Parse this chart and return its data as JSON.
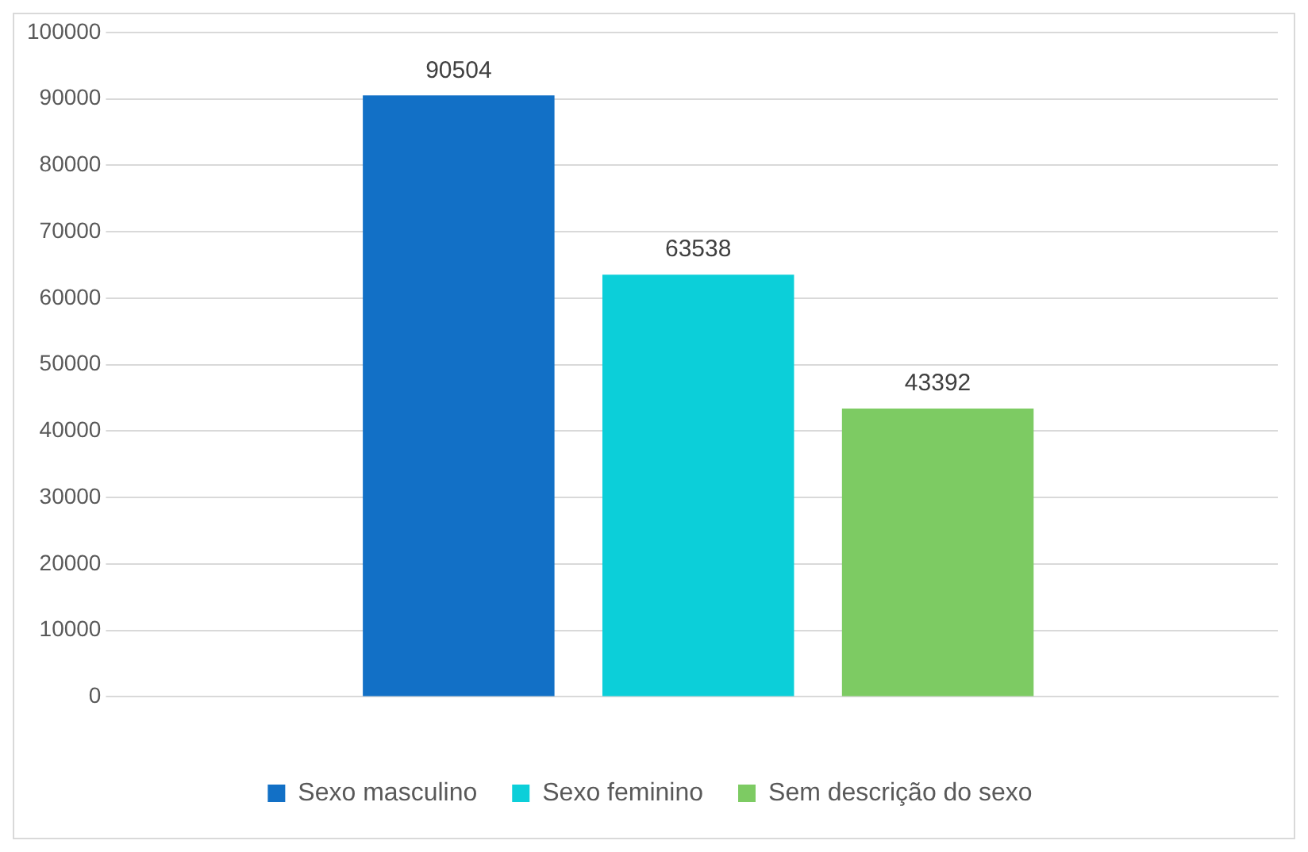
{
  "chart_data": {
    "type": "bar",
    "categories": [
      null
    ],
    "series": [
      {
        "name": "Sexo masculino",
        "color": "#1270c6",
        "values": [
          90504
        ]
      },
      {
        "name": "Sexo feminino",
        "color": "#0ccfd9",
        "values": [
          63538
        ]
      },
      {
        "name": "Sem descrição do sexo",
        "color": "#7dcb63",
        "values": [
          43392
        ]
      }
    ],
    "ylim": [
      0,
      100000
    ],
    "yticks": [
      0,
      10000,
      20000,
      30000,
      40000,
      50000,
      60000,
      70000,
      80000,
      90000,
      100000
    ],
    "grid": "y",
    "legend": "bottom",
    "data_labels": true
  }
}
